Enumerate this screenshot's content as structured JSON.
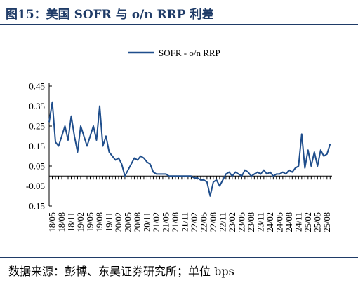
{
  "title": "图15：美国 SOFR 与 o/n RRP 利差",
  "source": "数据来源：彭博、东吴证券研究所；单位 bps",
  "chart_data": {
    "type": "line",
    "title": "",
    "xlabel": "",
    "ylabel": "",
    "ylim": [
      -0.15,
      0.45
    ],
    "yticks": [
      0.45,
      0.35,
      0.25,
      0.15,
      0.05,
      -0.05,
      -0.15
    ],
    "ytick_labels": [
      "0.45",
      "0.35",
      "0.25",
      "0.15",
      "0.05",
      "-0.05",
      "-0.15"
    ],
    "x_tick_labels": [
      "18/05",
      "18/08",
      "18/11",
      "19/02",
      "19/05",
      "19/08",
      "19/11",
      "20/02",
      "20/05",
      "20/08",
      "20/11",
      "21/02",
      "21/05",
      "21/08",
      "21/11",
      "22/02",
      "22/05",
      "22/08",
      "22/11",
      "23/02",
      "23/05",
      "23/08",
      "23/11",
      "24/02",
      "24/05",
      "24/08",
      "24/11",
      "25/02",
      "25/05",
      "25/08"
    ],
    "legend_position": "top-center",
    "grid": false,
    "line_color": "#1f4e8c",
    "series": [
      {
        "name": "SOFR - o/n RRP",
        "x": [
          "18/04",
          "18/05",
          "18/06",
          "18/07",
          "18/08",
          "18/09",
          "18/10",
          "18/11",
          "18/12",
          "19/01",
          "19/02",
          "19/03",
          "19/04",
          "19/05",
          "19/06",
          "19/07",
          "19/08",
          "19/09",
          "19/10",
          "19/11",
          "19/12",
          "20/01",
          "20/02",
          "20/03",
          "20/04",
          "20/05",
          "20/06",
          "20/07",
          "20/08",
          "20/09",
          "20/10",
          "20/11",
          "20/12",
          "21/01",
          "21/02",
          "21/03",
          "21/04",
          "21/05",
          "21/06",
          "21/07",
          "21/08",
          "21/09",
          "21/10",
          "21/11",
          "21/12",
          "22/01",
          "22/02",
          "22/03",
          "22/04",
          "22/05",
          "22/06",
          "22/07",
          "22/08",
          "22/09",
          "22/10",
          "22/11",
          "22/12",
          "23/01",
          "23/02",
          "23/03",
          "23/04",
          "23/05",
          "23/06",
          "23/07",
          "23/08",
          "23/09",
          "23/10",
          "23/11",
          "23/12",
          "24/01",
          "24/02",
          "24/03",
          "24/04",
          "24/05",
          "24/06",
          "24/07",
          "24/08",
          "24/09",
          "24/10",
          "24/11",
          "24/12",
          "25/01",
          "25/02",
          "25/03",
          "25/04",
          "25/05",
          "25/06",
          "25/07",
          "25/08",
          "25/09"
        ],
        "values": [
          0.27,
          0.37,
          0.17,
          0.15,
          0.2,
          0.25,
          0.18,
          0.3,
          0.2,
          0.12,
          0.25,
          0.2,
          0.15,
          0.2,
          0.25,
          0.18,
          0.35,
          0.15,
          0.2,
          0.12,
          0.1,
          0.08,
          0.09,
          0.06,
          0.0,
          0.03,
          0.06,
          0.09,
          0.08,
          0.1,
          0.09,
          0.07,
          0.06,
          0.02,
          0.01,
          0.01,
          0.01,
          0.01,
          0.0,
          0.0,
          0.0,
          0.0,
          0.0,
          0.0,
          0.0,
          0.0,
          -0.01,
          -0.01,
          -0.02,
          -0.02,
          -0.03,
          -0.1,
          -0.03,
          -0.02,
          -0.05,
          -0.02,
          0.01,
          0.02,
          0.0,
          0.02,
          0.01,
          0.0,
          0.03,
          0.02,
          0.0,
          0.01,
          0.02,
          0.01,
          0.03,
          0.01,
          0.02,
          0.0,
          0.01,
          0.01,
          0.02,
          0.01,
          0.03,
          0.02,
          0.04,
          0.05,
          0.21,
          0.04,
          0.13,
          0.05,
          0.12,
          0.05,
          0.13,
          0.1,
          0.11,
          0.16
        ]
      }
    ]
  }
}
